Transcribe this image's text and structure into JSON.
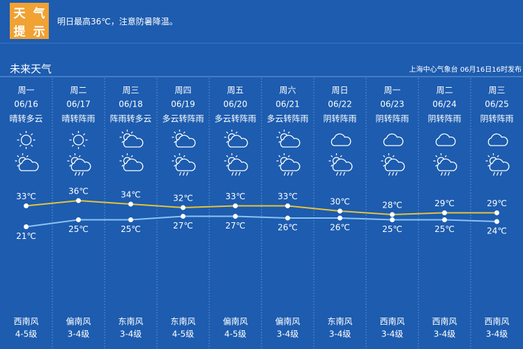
{
  "header": {
    "badge": [
      "天",
      "气",
      "提",
      "示"
    ],
    "notice": "明日最高36℃，注意防暑降温。"
  },
  "section": {
    "title": "未来天气",
    "source": "上海中心气象台 06月16日16时发布"
  },
  "days": [
    {
      "weekday": "周一",
      "date": "06/16",
      "weather": "晴转多云",
      "high": {
        "value": 33,
        "label": "33℃"
      },
      "low": {
        "value": 21,
        "label": "21℃"
      },
      "wind": "西南风",
      "level": "4-5级"
    },
    {
      "weekday": "周二",
      "date": "06/17",
      "weather": "晴转阵雨",
      "high": {
        "value": 36,
        "label": "36℃"
      },
      "low": {
        "value": 25,
        "label": "25℃"
      },
      "wind": "偏南风",
      "level": "3-4级"
    },
    {
      "weekday": "周三",
      "date": "06/18",
      "weather": "阵雨转多云",
      "high": {
        "value": 34,
        "label": "34℃"
      },
      "low": {
        "value": 25,
        "label": "25℃"
      },
      "wind": "东南风",
      "level": "3-4级"
    },
    {
      "weekday": "周四",
      "date": "06/19",
      "weather": "多云转阵雨",
      "high": {
        "value": 32,
        "label": "32℃"
      },
      "low": {
        "value": 27,
        "label": "27℃"
      },
      "wind": "东南风",
      "level": "4-5级"
    },
    {
      "weekday": "周五",
      "date": "06/20",
      "weather": "多云转阵雨",
      "high": {
        "value": 33,
        "label": "33℃"
      },
      "low": {
        "value": 27,
        "label": "27℃"
      },
      "wind": "偏南风",
      "level": "4-5级"
    },
    {
      "weekday": "周六",
      "date": "06/21",
      "weather": "多云转阵雨",
      "high": {
        "value": 33,
        "label": "33℃"
      },
      "low": {
        "value": 26,
        "label": "26℃"
      },
      "wind": "偏南风",
      "level": "3-4级"
    },
    {
      "weekday": "周日",
      "date": "06/22",
      "weather": "阴转阵雨",
      "high": {
        "value": 30,
        "label": "30℃"
      },
      "low": {
        "value": 26,
        "label": "26℃"
      },
      "wind": "东南风",
      "level": "3-4级"
    },
    {
      "weekday": "周一",
      "date": "06/23",
      "weather": "阴转阵雨",
      "high": {
        "value": 28,
        "label": "28℃"
      },
      "low": {
        "value": 25,
        "label": "25℃"
      },
      "wind": "西南风",
      "level": "3-4级"
    },
    {
      "weekday": "周二",
      "date": "06/24",
      "weather": "阴转阵雨",
      "high": {
        "value": 29,
        "label": "29℃"
      },
      "low": {
        "value": 25,
        "label": "25℃"
      },
      "wind": "西南风",
      "level": "3-4级"
    },
    {
      "weekday": "周三",
      "date": "06/25",
      "weather": "阴转阵雨",
      "high": {
        "value": 29,
        "label": "29℃"
      },
      "low": {
        "value": 24,
        "label": "24℃"
      },
      "wind": "西南风",
      "level": "3-4级"
    }
  ]
}
